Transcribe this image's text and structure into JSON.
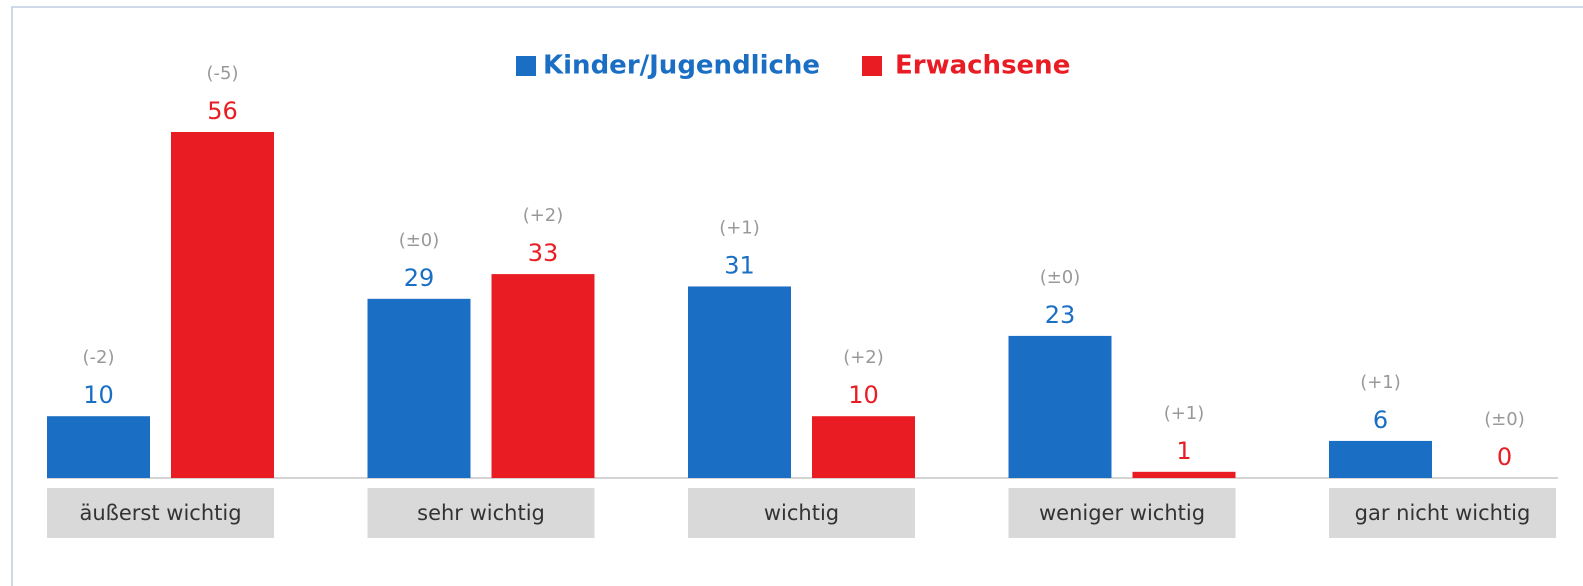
{
  "chart_data": {
    "type": "bar",
    "categories": [
      "äußerst wichtig",
      "sehr wichtig",
      "wichtig",
      "weniger wichtig",
      "gar nicht wichtig"
    ],
    "series": [
      {
        "name": "Kinder/Jugendliche",
        "color": "#1a6fc4",
        "values": [
          10,
          29,
          31,
          23,
          6
        ],
        "changes": [
          "(-2)",
          "(±0)",
          "(+1)",
          "(±0)",
          "(+1)"
        ]
      },
      {
        "name": "Erwachsene",
        "color": "#e91c24",
        "values": [
          56,
          33,
          10,
          1,
          0
        ],
        "changes": [
          "(-5)",
          "(+2)",
          "(+2)",
          "(+1)",
          "(±0)"
        ]
      }
    ]
  }
}
